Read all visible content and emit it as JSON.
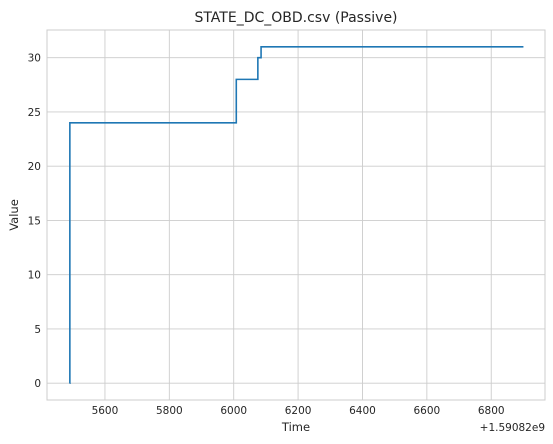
{
  "chart_data": {
    "type": "line",
    "step": "post",
    "title": "STATE_DC_OBD.csv (Passive)",
    "xlabel": "Time",
    "ylabel": "Value",
    "x_offset_label": "+1.59082e9",
    "xlim": [
      5420,
      6967
    ],
    "ylim": [
      -1.55,
      32.55
    ],
    "xticks": [
      5600,
      5800,
      6000,
      6200,
      6400,
      6600,
      6800
    ],
    "yticks": [
      0,
      5,
      10,
      15,
      20,
      25,
      30
    ],
    "grid": true,
    "series": [
      {
        "color": "#1f77b4",
        "x": [
          5490,
          5491,
          6008,
          6075,
          6085,
          6900
        ],
        "y": [
          0,
          24,
          28,
          30,
          31,
          31
        ]
      }
    ]
  }
}
